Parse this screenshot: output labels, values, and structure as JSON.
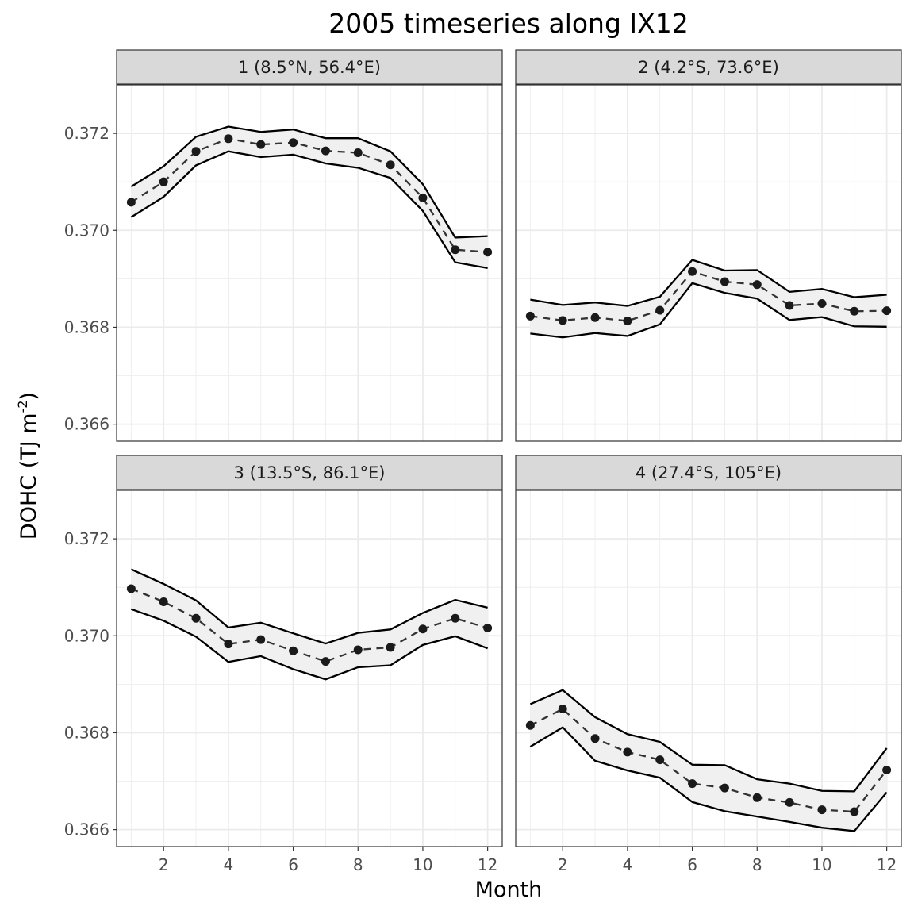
{
  "chart_data": {
    "type": "line",
    "title": "2005 timeseries along IX12",
    "xlabel": "Month",
    "ylabel": "DOHC (TJ m",
    "ylabel_superscript": "-2",
    "ylabel_suffix": ")",
    "xlim": [
      0.55,
      12.45
    ],
    "ylim": [
      0.36565,
      0.373
    ],
    "x_ticks": [
      2,
      4,
      6,
      8,
      10,
      12
    ],
    "x_tick_labels": [
      "2",
      "4",
      "6",
      "8",
      "10",
      "12"
    ],
    "y_ticks": [
      0.366,
      0.368,
      0.37,
      0.372
    ],
    "y_tick_labels": [
      "0.366",
      "0.368",
      "0.370",
      "0.372"
    ],
    "grid": true,
    "legend": "none",
    "colors": {
      "strip_fill": "#d9d9d9",
      "panel_border": "#333333",
      "grid_major": "#ebebeb",
      "band_fill": "#f0f0f0",
      "line": "#000000",
      "points": "#1a1a1a"
    },
    "facets": [
      {
        "label": "1 (8.5°N, 56.4°E)",
        "x": [
          1,
          2,
          3,
          4,
          5,
          6,
          7,
          8,
          9,
          10,
          11,
          12
        ],
        "mean": [
          0.37058,
          0.371,
          0.37163,
          0.37189,
          0.37177,
          0.37181,
          0.37164,
          0.3716,
          0.37135,
          0.37067,
          0.3696,
          0.36955
        ],
        "upper": [
          0.3709,
          0.37132,
          0.37193,
          0.37214,
          0.37203,
          0.37208,
          0.3719,
          0.3719,
          0.37163,
          0.37095,
          0.36985,
          0.36988
        ],
        "lower": [
          0.37027,
          0.37069,
          0.37134,
          0.37163,
          0.37151,
          0.37156,
          0.37138,
          0.37129,
          0.37108,
          0.3704,
          0.36934,
          0.36922
        ]
      },
      {
        "label": "2 (4.2°S, 73.6°E)",
        "x": [
          1,
          2,
          3,
          4,
          5,
          6,
          7,
          8,
          9,
          10,
          11,
          12
        ],
        "mean": [
          0.36823,
          0.36814,
          0.3682,
          0.36813,
          0.36835,
          0.36915,
          0.36894,
          0.36888,
          0.36845,
          0.36849,
          0.36833,
          0.36834
        ],
        "upper": [
          0.36857,
          0.36846,
          0.36851,
          0.36844,
          0.36863,
          0.36939,
          0.36917,
          0.36918,
          0.36873,
          0.36879,
          0.36862,
          0.36867
        ],
        "lower": [
          0.36787,
          0.36779,
          0.36788,
          0.36782,
          0.36806,
          0.36891,
          0.36871,
          0.36859,
          0.36815,
          0.36821,
          0.36802,
          0.36801
        ]
      },
      {
        "label": "3 (13.5°S, 86.1°E)",
        "x": [
          1,
          2,
          3,
          4,
          5,
          6,
          7,
          8,
          9,
          10,
          11,
          12
        ],
        "mean": [
          0.37097,
          0.3707,
          0.37036,
          0.36983,
          0.36992,
          0.36969,
          0.36947,
          0.36971,
          0.36976,
          0.37014,
          0.37036,
          0.37016
        ],
        "upper": [
          0.37137,
          0.37107,
          0.37073,
          0.37017,
          0.37027,
          0.37005,
          0.36984,
          0.37006,
          0.37013,
          0.37047,
          0.37074,
          0.37058
        ],
        "lower": [
          0.37055,
          0.37031,
          0.36998,
          0.36946,
          0.36958,
          0.36931,
          0.3691,
          0.36935,
          0.36939,
          0.36981,
          0.36999,
          0.36974
        ]
      },
      {
        "label": "4 (27.4°S, 105°E)",
        "x": [
          1,
          2,
          3,
          4,
          5,
          6,
          7,
          8,
          9,
          10,
          11,
          12
        ],
        "mean": [
          0.36815,
          0.36849,
          0.36788,
          0.3676,
          0.36744,
          0.36695,
          0.36686,
          0.36666,
          0.36656,
          0.36641,
          0.36637,
          0.36723
        ],
        "upper": [
          0.36859,
          0.36888,
          0.36832,
          0.36797,
          0.36781,
          0.36734,
          0.36733,
          0.36704,
          0.36695,
          0.3668,
          0.36679,
          0.36768
        ],
        "lower": [
          0.36771,
          0.36811,
          0.36742,
          0.36722,
          0.36707,
          0.36657,
          0.36638,
          0.36627,
          0.36616,
          0.36604,
          0.36597,
          0.36677
        ]
      }
    ]
  }
}
